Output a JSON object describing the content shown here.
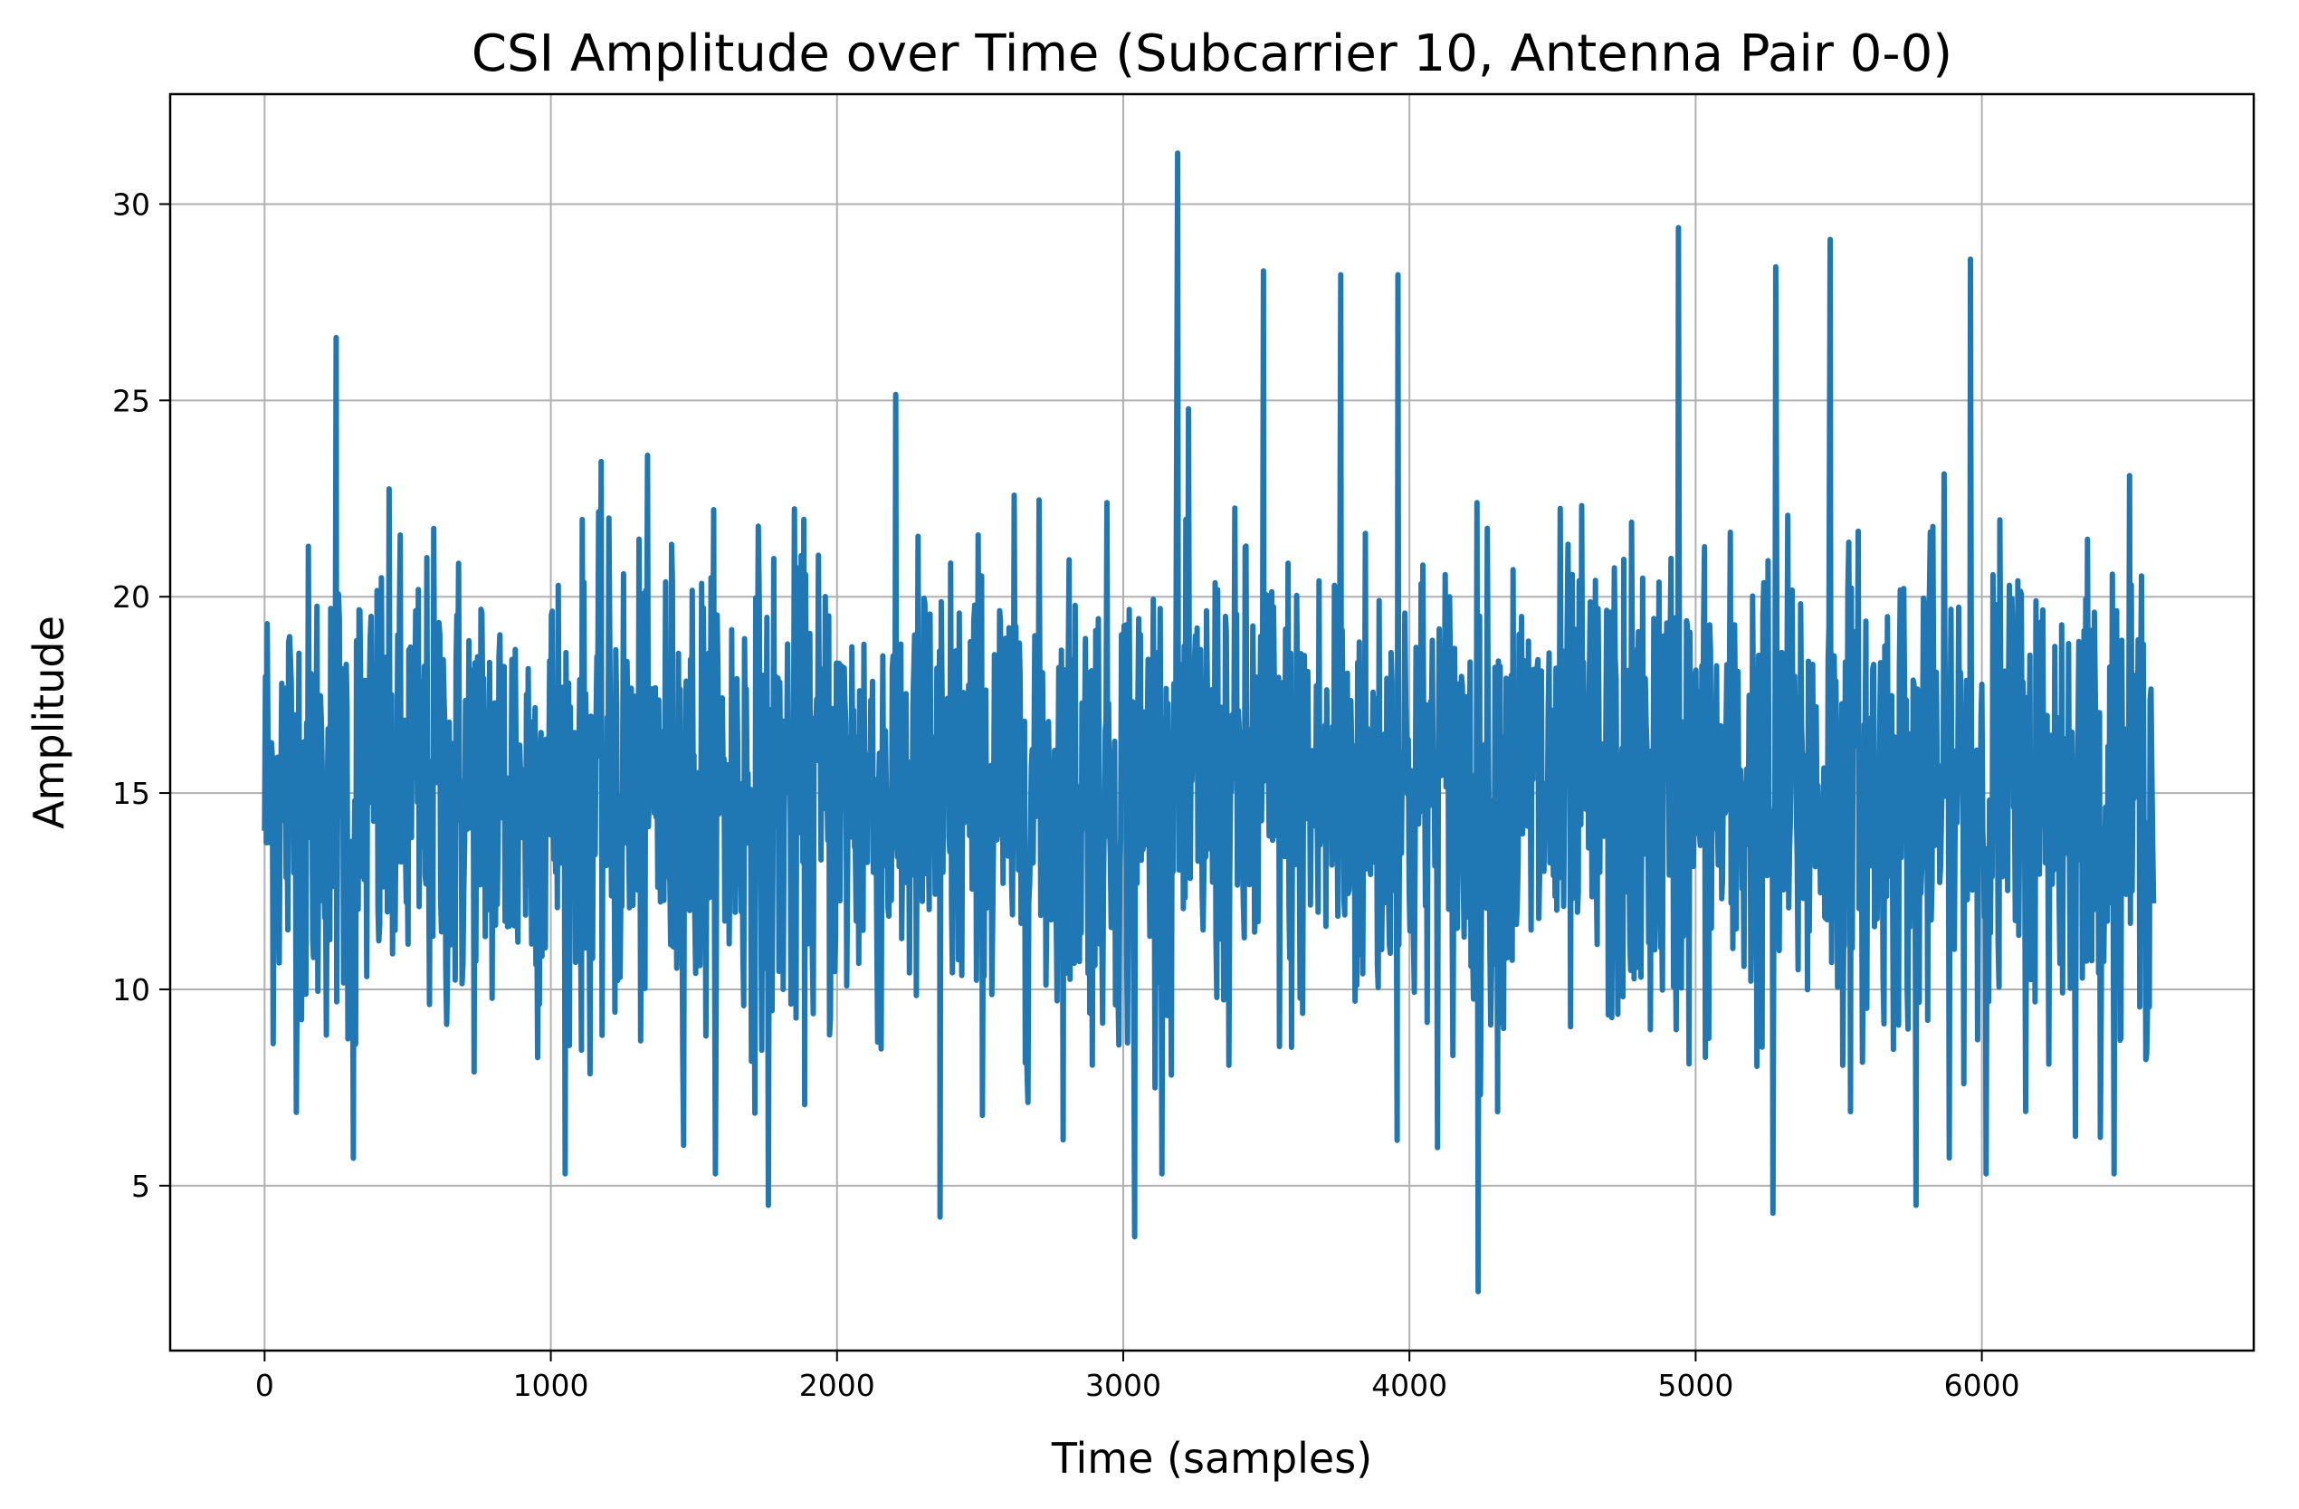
{
  "chart_data": {
    "type": "line",
    "title": "CSI Amplitude over Time (Subcarrier 10, Antenna Pair 0-0)",
    "xlabel": "Time (samples)",
    "ylabel": "Amplitude",
    "xlim": [
      -330,
      6950
    ],
    "ylim": [
      0.8,
      32.8
    ],
    "x_ticks": [
      0,
      1000,
      2000,
      3000,
      4000,
      5000,
      6000
    ],
    "x_tick_labels": [
      "0",
      "1000",
      "2000",
      "3000",
      "4000",
      "5000",
      "6000"
    ],
    "y_ticks": [
      5,
      10,
      15,
      20,
      25,
      30
    ],
    "y_tick_labels": [
      "5",
      "10",
      "15",
      "20",
      "25",
      "30"
    ],
    "grid": true,
    "series": [
      {
        "color": "#1f77b4",
        "x_start": 0,
        "x_end": 6600,
        "mean": 15.0,
        "y_min": 2.3,
        "y_max": 31.3,
        "notable_points": [
          {
            "x": 3190,
            "y": 31.3
          },
          {
            "x": 4940,
            "y": 29.4
          },
          {
            "x": 5470,
            "y": 29.1
          },
          {
            "x": 5960,
            "y": 28.6
          },
          {
            "x": 5280,
            "y": 28.4
          },
          {
            "x": 3490,
            "y": 28.3
          },
          {
            "x": 3760,
            "y": 28.2
          },
          {
            "x": 3960,
            "y": 28.2
          },
          {
            "x": 250,
            "y": 26.6
          },
          {
            "x": 4240,
            "y": 2.3
          },
          {
            "x": 3040,
            "y": 3.7
          },
          {
            "x": 2360,
            "y": 4.2
          },
          {
            "x": 5270,
            "y": 4.3
          },
          {
            "x": 1760,
            "y": 4.5
          },
          {
            "x": 5770,
            "y": 4.5
          },
          {
            "x": 310,
            "y": 5.7
          }
        ]
      }
    ]
  }
}
